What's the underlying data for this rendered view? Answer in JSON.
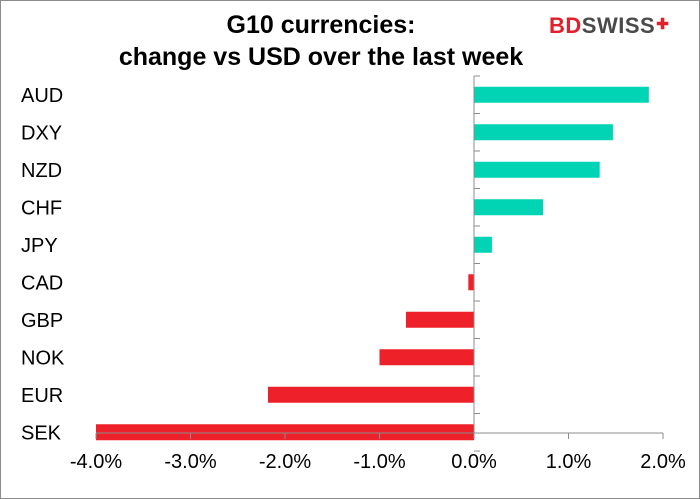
{
  "header": {
    "title_line1": "G10 currencies:",
    "title_line2": "change vs USD over the last week",
    "logo_bd": "BD",
    "logo_swiss": "SWISS",
    "logo_mark": "✚"
  },
  "colors": {
    "positive": "#00d4b4",
    "negative": "#ee2029",
    "axis": "#8c8c8c"
  },
  "chart_data": {
    "type": "bar",
    "orientation": "horizontal",
    "title": "G10 currencies: change vs USD over the last week",
    "categories": [
      "AUD",
      "DXY",
      "NZD",
      "CHF",
      "JPY",
      "CAD",
      "GBP",
      "NOK",
      "EUR",
      "SEK"
    ],
    "values": [
      1.85,
      1.47,
      1.33,
      0.73,
      0.19,
      -0.06,
      -0.72,
      -1.0,
      -2.18,
      -4.0
    ],
    "unit": "%",
    "xlim": [
      -4.0,
      2.0
    ],
    "xticks": [
      -4.0,
      -3.0,
      -2.0,
      -1.0,
      0.0,
      1.0,
      2.0
    ],
    "xtick_labels": [
      "-4.0%",
      "-3.0%",
      "-2.0%",
      "-1.0%",
      "0.0%",
      "1.0%",
      "2.0%"
    ],
    "xlabel": "",
    "ylabel": "",
    "grid": false,
    "legend": "none"
  }
}
